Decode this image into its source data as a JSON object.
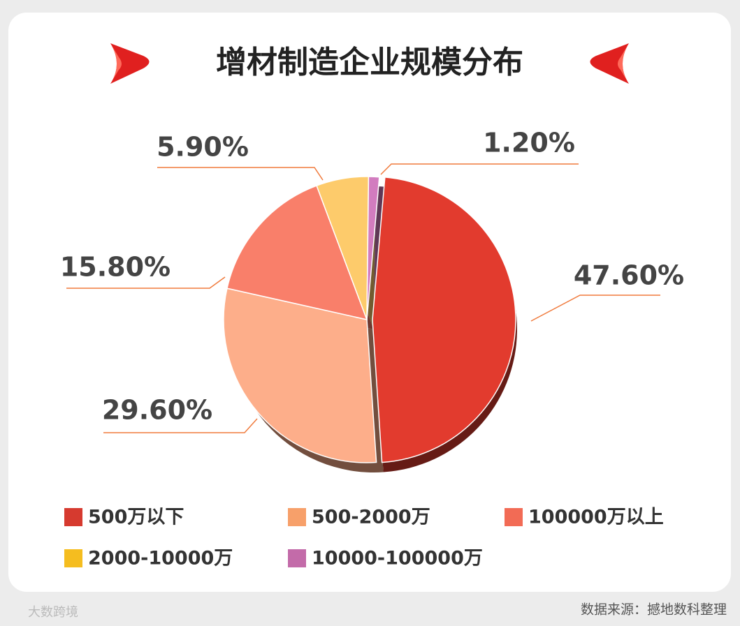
{
  "chart_data": {
    "type": "pie",
    "title": "增材制造企业规模分布",
    "categories": [
      "500万以下",
      "500-2000万",
      "100000万以上",
      "2000-10000万",
      "10000-100000万"
    ],
    "values": [
      47.6,
      29.6,
      15.8,
      5.9,
      1.2
    ],
    "value_labels": [
      "47.60%",
      "29.60%",
      "15.80%",
      "5.90%",
      "1.20%"
    ],
    "colors": [
      "#e23b2e",
      "#fdae8a",
      "#f97f6a",
      "#fdcb6b",
      "#d27cbf"
    ],
    "legend_colors": [
      "#d63a2f",
      "#f7a06a",
      "#f26b55",
      "#f5bd1f",
      "#c36ba9"
    ],
    "source": "数据来源：撼地数科整理",
    "watermark": "大数跨境"
  }
}
